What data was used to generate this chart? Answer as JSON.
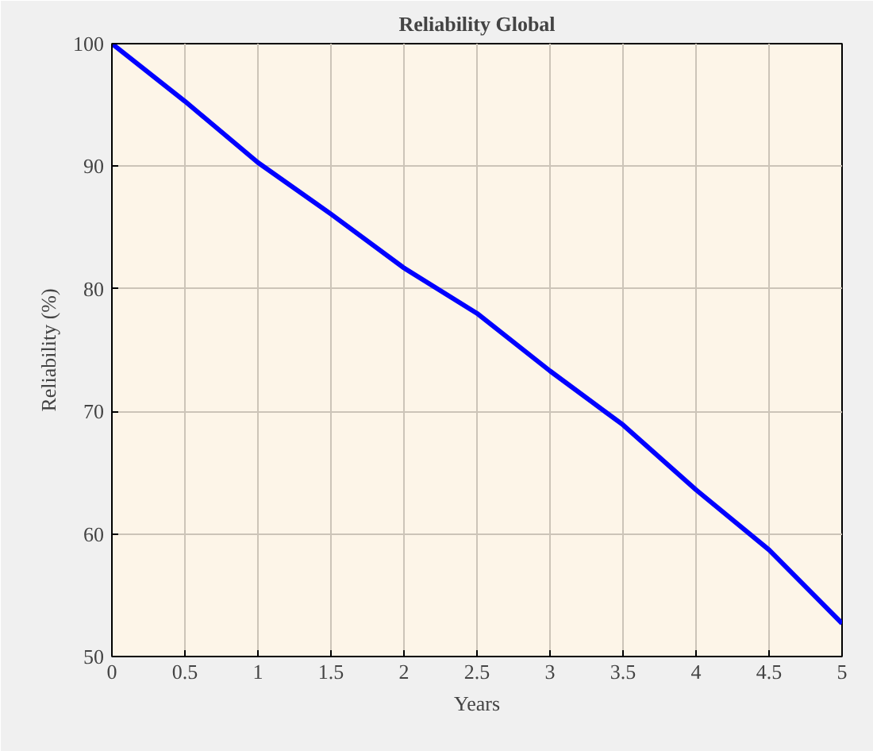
{
  "chart_data": {
    "type": "line",
    "title": "Reliability Global",
    "xlabel": "Years",
    "ylabel": "Reliability (%)",
    "x": [
      0,
      0.5,
      1,
      1.5,
      2,
      2.5,
      3,
      3.5,
      4,
      4.5,
      5
    ],
    "series": [
      {
        "color": "#0000ff",
        "values": [
          100,
          95.3,
          90.3,
          86.1,
          81.7,
          78.0,
          73.3,
          68.9,
          63.6,
          58.7,
          52.7
        ]
      }
    ],
    "xlim": [
      0,
      5
    ],
    "ylim": [
      50,
      100
    ],
    "xticks": [
      0,
      0.5,
      1,
      1.5,
      2,
      2.5,
      3,
      3.5,
      4,
      4.5,
      5
    ],
    "yticks": [
      50,
      60,
      70,
      80,
      90,
      100
    ],
    "grid": true,
    "marker": "none",
    "line_style": "solid"
  }
}
